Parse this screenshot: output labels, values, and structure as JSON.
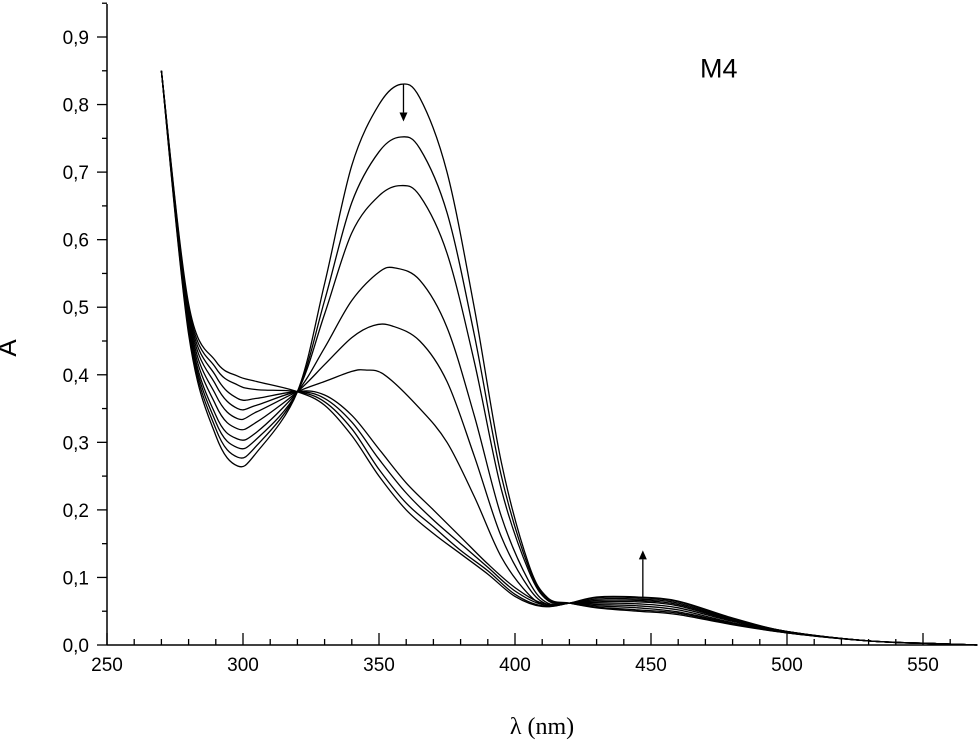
{
  "chart_data": {
    "type": "line",
    "xlabel": "λ (nm)",
    "ylabel": "A",
    "xlim": [
      250,
      570
    ],
    "ylim": [
      0,
      0.95
    ],
    "x_ticks": [
      250,
      300,
      350,
      400,
      450,
      500,
      550
    ],
    "x_tick_labels": [
      "250",
      "300",
      "350",
      "400",
      "450",
      "500",
      "550"
    ],
    "y_ticks": [
      0,
      0.1,
      0.2,
      0.3,
      0.4,
      0.5,
      0.6,
      0.7,
      0.8,
      0.9
    ],
    "y_tick_labels": [
      "0,0",
      "0,1",
      "0,2",
      "0,3",
      "0,4",
      "0,5",
      "0,6",
      "0,7",
      "0,8",
      "0,9"
    ],
    "grid": false,
    "annotations": [
      {
        "text": "M4",
        "x": 468,
        "y": 0.84
      },
      {
        "type": "arrow-down",
        "x": 359,
        "y_from": 0.83,
        "y_to": 0.775
      },
      {
        "type": "arrow-up",
        "x": 447,
        "y_from": 0.07,
        "y_to": 0.14
      }
    ],
    "series": [
      {
        "x": [
          270,
          280,
          290,
          298,
          305,
          320,
          330,
          340,
          350,
          358,
          365,
          375,
          385,
          395,
          405,
          412,
          420,
          430,
          445,
          460,
          480,
          500,
          530,
          555,
          570
        ],
        "y": [
          0.85,
          0.46,
          0.31,
          0.265,
          0.285,
          0.375,
          0.535,
          0.71,
          0.8,
          0.83,
          0.81,
          0.7,
          0.5,
          0.27,
          0.12,
          0.07,
          0.062,
          0.055,
          0.05,
          0.045,
          0.03,
          0.018,
          0.006,
          0.002,
          0.0
        ]
      },
      {
        "x": [
          270,
          280,
          290,
          298,
          305,
          320,
          330,
          340,
          350,
          358,
          365,
          375,
          385,
          395,
          405,
          412,
          420,
          430,
          445,
          460,
          480,
          500,
          530,
          555,
          570
        ],
        "y": [
          0.85,
          0.465,
          0.32,
          0.278,
          0.295,
          0.375,
          0.51,
          0.655,
          0.73,
          0.752,
          0.735,
          0.64,
          0.46,
          0.25,
          0.115,
          0.068,
          0.062,
          0.056,
          0.052,
          0.047,
          0.031,
          0.018,
          0.006,
          0.002,
          0.0
        ]
      },
      {
        "x": [
          270,
          280,
          290,
          298,
          305,
          320,
          330,
          340,
          350,
          358,
          365,
          375,
          385,
          395,
          405,
          412,
          420,
          430,
          445,
          460,
          480,
          500,
          530,
          555,
          570
        ],
        "y": [
          0.85,
          0.47,
          0.33,
          0.292,
          0.305,
          0.375,
          0.49,
          0.61,
          0.665,
          0.68,
          0.665,
          0.58,
          0.42,
          0.23,
          0.11,
          0.066,
          0.062,
          0.058,
          0.055,
          0.049,
          0.032,
          0.018,
          0.006,
          0.002,
          0.0
        ]
      },
      {
        "x": [
          270,
          280,
          290,
          298,
          305,
          320,
          330,
          340,
          350,
          356,
          365,
          375,
          385,
          395,
          405,
          412,
          420,
          430,
          445,
          460,
          480,
          500,
          530,
          555,
          570
        ],
        "y": [
          0.85,
          0.475,
          0.34,
          0.305,
          0.315,
          0.375,
          0.44,
          0.51,
          0.552,
          0.558,
          0.54,
          0.47,
          0.34,
          0.19,
          0.095,
          0.062,
          0.062,
          0.06,
          0.058,
          0.052,
          0.033,
          0.019,
          0.006,
          0.002,
          0.0
        ]
      },
      {
        "x": [
          270,
          280,
          290,
          298,
          305,
          320,
          330,
          340,
          348,
          355,
          365,
          375,
          385,
          395,
          405,
          412,
          420,
          430,
          445,
          460,
          480,
          500,
          530,
          555,
          570
        ],
        "y": [
          0.85,
          0.48,
          0.355,
          0.32,
          0.33,
          0.375,
          0.415,
          0.455,
          0.473,
          0.472,
          0.45,
          0.39,
          0.28,
          0.16,
          0.085,
          0.06,
          0.062,
          0.062,
          0.061,
          0.055,
          0.035,
          0.019,
          0.006,
          0.002,
          0.0
        ]
      },
      {
        "x": [
          270,
          280,
          290,
          298,
          305,
          320,
          330,
          340,
          345,
          352,
          365,
          375,
          385,
          395,
          405,
          412,
          420,
          430,
          445,
          460,
          480,
          500,
          530,
          555,
          570
        ],
        "y": [
          0.85,
          0.485,
          0.37,
          0.335,
          0.345,
          0.375,
          0.39,
          0.405,
          0.407,
          0.4,
          0.35,
          0.3,
          0.22,
          0.13,
          0.075,
          0.058,
          0.062,
          0.064,
          0.064,
          0.058,
          0.036,
          0.019,
          0.006,
          0.002,
          0.0
        ]
      },
      {
        "x": [
          270,
          280,
          290,
          298,
          305,
          320,
          330,
          340,
          350,
          360,
          370,
          380,
          390,
          400,
          410,
          420,
          430,
          445,
          460,
          480,
          500,
          530,
          555,
          570
        ],
        "y": [
          0.85,
          0.49,
          0.385,
          0.35,
          0.355,
          0.375,
          0.37,
          0.34,
          0.29,
          0.24,
          0.2,
          0.16,
          0.12,
          0.085,
          0.062,
          0.062,
          0.066,
          0.066,
          0.06,
          0.037,
          0.02,
          0.006,
          0.002,
          0.0
        ]
      },
      {
        "x": [
          270,
          280,
          290,
          298,
          305,
          320,
          330,
          340,
          350,
          360,
          370,
          380,
          390,
          400,
          410,
          420,
          430,
          445,
          460,
          480,
          500,
          530,
          555,
          570
        ],
        "y": [
          0.85,
          0.495,
          0.398,
          0.365,
          0.365,
          0.375,
          0.365,
          0.33,
          0.275,
          0.225,
          0.185,
          0.15,
          0.115,
          0.08,
          0.06,
          0.062,
          0.068,
          0.068,
          0.062,
          0.038,
          0.02,
          0.006,
          0.002,
          0.0
        ]
      },
      {
        "x": [
          270,
          280,
          290,
          298,
          305,
          320,
          330,
          340,
          350,
          360,
          370,
          380,
          390,
          400,
          410,
          420,
          430,
          445,
          460,
          480,
          500,
          530,
          555,
          570
        ],
        "y": [
          0.85,
          0.5,
          0.41,
          0.385,
          0.378,
          0.375,
          0.36,
          0.32,
          0.26,
          0.21,
          0.175,
          0.14,
          0.11,
          0.075,
          0.058,
          0.062,
          0.07,
          0.07,
          0.064,
          0.039,
          0.02,
          0.006,
          0.002,
          0.0
        ]
      },
      {
        "x": [
          270,
          280,
          290,
          298,
          305,
          320,
          330,
          340,
          350,
          360,
          370,
          380,
          390,
          400,
          410,
          420,
          430,
          445,
          460,
          480,
          500,
          530,
          555,
          570
        ],
        "y": [
          0.85,
          0.505,
          0.42,
          0.398,
          0.39,
          0.375,
          0.355,
          0.31,
          0.25,
          0.2,
          0.165,
          0.135,
          0.105,
          0.072,
          0.057,
          0.062,
          0.071,
          0.071,
          0.065,
          0.04,
          0.02,
          0.006,
          0.002,
          0.0
        ]
      }
    ]
  }
}
